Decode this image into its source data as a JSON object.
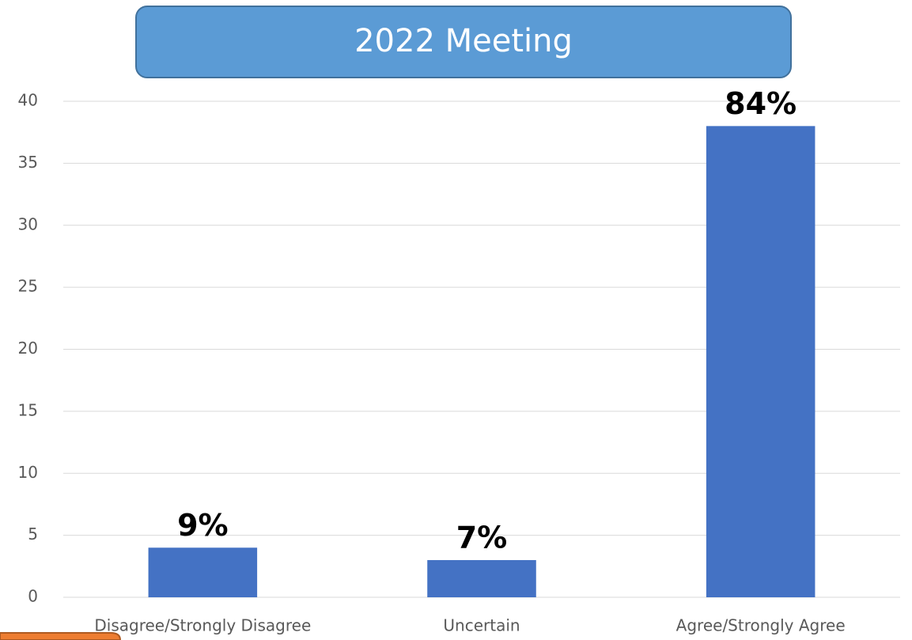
{
  "chart_data": {
    "type": "bar",
    "title": "2022 Meeting",
    "categories": [
      "Disagree/Strongly Disagree",
      "Uncertain",
      "Agree/Strongly Agree"
    ],
    "values": [
      4,
      3,
      38
    ],
    "value_labels": [
      "9%",
      "7%",
      "84%"
    ],
    "color": "#4472c4",
    "ylim": [
      0,
      40
    ],
    "yticks": [
      0,
      5,
      10,
      15,
      20,
      25,
      30,
      35,
      40
    ],
    "grid": true
  }
}
